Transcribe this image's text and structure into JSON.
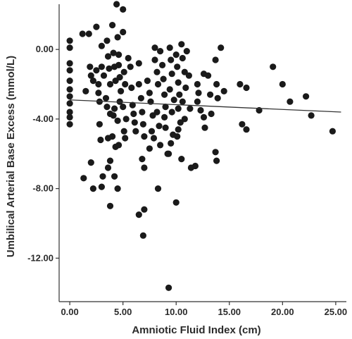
{
  "chart_data": {
    "type": "scatter",
    "title": "",
    "xlabel": "Amniotic Fluid Index (cm)",
    "ylabel": "Umbilical Arterial Base Excess (mmol/L)",
    "xlim": [
      -1.0,
      26.0
    ],
    "ylim": [
      -14.5,
      2.6
    ],
    "xticks": [
      {
        "value": 0,
        "label": "0.00"
      },
      {
        "value": 5,
        "label": "5.00"
      },
      {
        "value": 10,
        "label": "10.00"
      },
      {
        "value": 15,
        "label": "15.00"
      },
      {
        "value": 20,
        "label": "20.00"
      },
      {
        "value": 25,
        "label": "25.00"
      }
    ],
    "yticks": [
      {
        "value": 0,
        "label": "0.00"
      },
      {
        "value": -4,
        "label": "-4.00"
      },
      {
        "value": -8,
        "label": "-8.00"
      },
      {
        "value": -12,
        "label": "-12.00"
      }
    ],
    "grid": false,
    "legend": "none",
    "point_color": "#1a1a1a",
    "line_color": "#333333",
    "trend_line": {
      "x": [
        0,
        25.5
      ],
      "y": [
        -2.9,
        -3.6
      ]
    },
    "points": [
      [
        0,
        0.5
      ],
      [
        0,
        0.1
      ],
      [
        0,
        -0.8
      ],
      [
        0,
        -1.2
      ],
      [
        0,
        -1.8
      ],
      [
        0,
        -2.3
      ],
      [
        0,
        -2.7
      ],
      [
        0,
        -3.1
      ],
      [
        0,
        -3.6
      ],
      [
        0,
        -3.9
      ],
      [
        0,
        -4.3
      ],
      [
        1.2,
        0.9
      ],
      [
        1.5,
        -2.4
      ],
      [
        1.3,
        -7.4
      ],
      [
        1.8,
        0.9
      ],
      [
        1.9,
        -1.0
      ],
      [
        2.0,
        -1.5
      ],
      [
        2.2,
        -1.8
      ],
      [
        2.0,
        -6.5
      ],
      [
        2.2,
        -8.0
      ],
      [
        2.5,
        1.3
      ],
      [
        2.5,
        -1.2
      ],
      [
        2.7,
        -2.0
      ],
      [
        2.7,
        -2.5
      ],
      [
        2.8,
        -3.0
      ],
      [
        2.8,
        -4.3
      ],
      [
        2.9,
        -5.2
      ],
      [
        3.0,
        0.2
      ],
      [
        3.0,
        -1.0
      ],
      [
        3.2,
        -1.5
      ],
      [
        3.4,
        -2.8
      ],
      [
        3.5,
        -3.3
      ],
      [
        3.1,
        -7.3
      ],
      [
        3.0,
        -7.9
      ],
      [
        3.5,
        0.5
      ],
      [
        3.6,
        -0.4
      ],
      [
        3.7,
        -1.1
      ],
      [
        3.8,
        -2.0
      ],
      [
        3.8,
        -3.7
      ],
      [
        3.6,
        -5.1
      ],
      [
        3.8,
        -6.4
      ],
      [
        3.6,
        -6.8
      ],
      [
        3.8,
        -9.0
      ],
      [
        4.0,
        1.4
      ],
      [
        4.1,
        -0.2
      ],
      [
        4.2,
        -1.0
      ],
      [
        4.3,
        -1.8
      ],
      [
        4.2,
        -3.4
      ],
      [
        4.1,
        -3.8
      ],
      [
        4.0,
        -5.0
      ],
      [
        4.3,
        -5.6
      ],
      [
        4.2,
        -7.3
      ],
      [
        4.4,
        2.6
      ],
      [
        4.5,
        0.7
      ],
      [
        4.6,
        -0.3
      ],
      [
        4.6,
        -0.9
      ],
      [
        4.7,
        -1.6
      ],
      [
        4.8,
        -2.4
      ],
      [
        4.7,
        -3.0
      ],
      [
        4.5,
        -4.1
      ],
      [
        4.6,
        -5.5
      ],
      [
        4.5,
        -8.0
      ],
      [
        5.0,
        2.3
      ],
      [
        5.0,
        1.0
      ],
      [
        5.1,
        -1.3
      ],
      [
        5.2,
        -2.0
      ],
      [
        5.0,
        -3.3
      ],
      [
        5.3,
        -4.0
      ],
      [
        5.1,
        -4.7
      ],
      [
        5.2,
        -5.1
      ],
      [
        5.5,
        -0.5
      ],
      [
        5.7,
        -1.0
      ],
      [
        5.8,
        -2.2
      ],
      [
        5.9,
        -3.2
      ],
      [
        6.0,
        -3.7
      ],
      [
        6.1,
        -4.2
      ],
      [
        6.2,
        -4.7
      ],
      [
        6.5,
        -0.8
      ],
      [
        6.5,
        -2.0
      ],
      [
        6.7,
        -2.8
      ],
      [
        6.8,
        -3.6
      ],
      [
        6.9,
        -4.3
      ],
      [
        7.0,
        -5.0
      ],
      [
        6.8,
        -6.3
      ],
      [
        7.0,
        -6.8
      ],
      [
        6.5,
        -9.5
      ],
      [
        7.0,
        -9.2
      ],
      [
        6.9,
        -10.7
      ],
      [
        7.3,
        -1.8
      ],
      [
        7.5,
        -2.5
      ],
      [
        7.6,
        -3.0
      ],
      [
        7.8,
        -3.8
      ],
      [
        7.7,
        -4.7
      ],
      [
        7.9,
        -5.1
      ],
      [
        7.5,
        -5.7
      ],
      [
        8.0,
        0.1
      ],
      [
        8.0,
        -0.6
      ],
      [
        8.2,
        -1.3
      ],
      [
        8.3,
        -2.0
      ],
      [
        8.2,
        -3.6
      ],
      [
        8.4,
        -4.4
      ],
      [
        8.5,
        -5.5
      ],
      [
        8.3,
        -8.0
      ],
      [
        8.5,
        -0.1
      ],
      [
        8.7,
        -0.9
      ],
      [
        8.8,
        -1.7
      ],
      [
        8.9,
        -2.6
      ],
      [
        9.0,
        -3.3
      ],
      [
        8.9,
        -3.9
      ],
      [
        9.0,
        -4.5
      ],
      [
        9.2,
        -6.0
      ],
      [
        9.4,
        0.1
      ],
      [
        9.5,
        -0.6
      ],
      [
        9.6,
        -1.4
      ],
      [
        9.4,
        -2.3
      ],
      [
        9.8,
        -2.9
      ],
      [
        9.6,
        -3.6
      ],
      [
        9.7,
        -4.9
      ],
      [
        9.5,
        -5.4
      ],
      [
        9.3,
        -6.0
      ],
      [
        9.3,
        -13.7
      ],
      [
        10.0,
        -0.3
      ],
      [
        10.1,
        -1.0
      ],
      [
        10.2,
        -1.9
      ],
      [
        10.3,
        -2.6
      ],
      [
        10.2,
        -3.4
      ],
      [
        10.4,
        -4.2
      ],
      [
        10.2,
        -4.6
      ],
      [
        10.1,
        -5.0
      ],
      [
        10.0,
        -8.8
      ],
      [
        10.5,
        0.3
      ],
      [
        10.6,
        -0.5
      ],
      [
        10.8,
        -1.3
      ],
      [
        10.9,
        -2.2
      ],
      [
        10.6,
        -3.0
      ],
      [
        10.8,
        -4.0
      ],
      [
        10.5,
        -6.3
      ],
      [
        11.0,
        -0.1
      ],
      [
        11.2,
        -1.5
      ],
      [
        11.3,
        -3.4
      ],
      [
        11.4,
        -6.8
      ],
      [
        11.8,
        -6.7
      ],
      [
        12.0,
        -2.0
      ],
      [
        12.1,
        -2.5
      ],
      [
        12.0,
        -3.0
      ],
      [
        12.3,
        -3.5
      ],
      [
        12.6,
        -1.4
      ],
      [
        12.6,
        -3.9
      ],
      [
        12.7,
        -4.5
      ],
      [
        13.0,
        -1.5
      ],
      [
        13.2,
        -2.6
      ],
      [
        13.3,
        -3.7
      ],
      [
        13.7,
        -0.6
      ],
      [
        13.8,
        -2.0
      ],
      [
        13.9,
        -2.8
      ],
      [
        13.7,
        -5.9
      ],
      [
        13.8,
        -6.4
      ],
      [
        14.2,
        0.1
      ],
      [
        14.5,
        -2.4
      ],
      [
        16.0,
        -2.0
      ],
      [
        16.2,
        -4.3
      ],
      [
        16.6,
        -2.2
      ],
      [
        16.6,
        -4.6
      ],
      [
        17.8,
        -3.5
      ],
      [
        19.1,
        -1.0
      ],
      [
        20.0,
        -2.0
      ],
      [
        20.7,
        -3.0
      ],
      [
        22.2,
        -2.7
      ],
      [
        22.7,
        -3.8
      ],
      [
        24.7,
        -4.7
      ]
    ]
  }
}
